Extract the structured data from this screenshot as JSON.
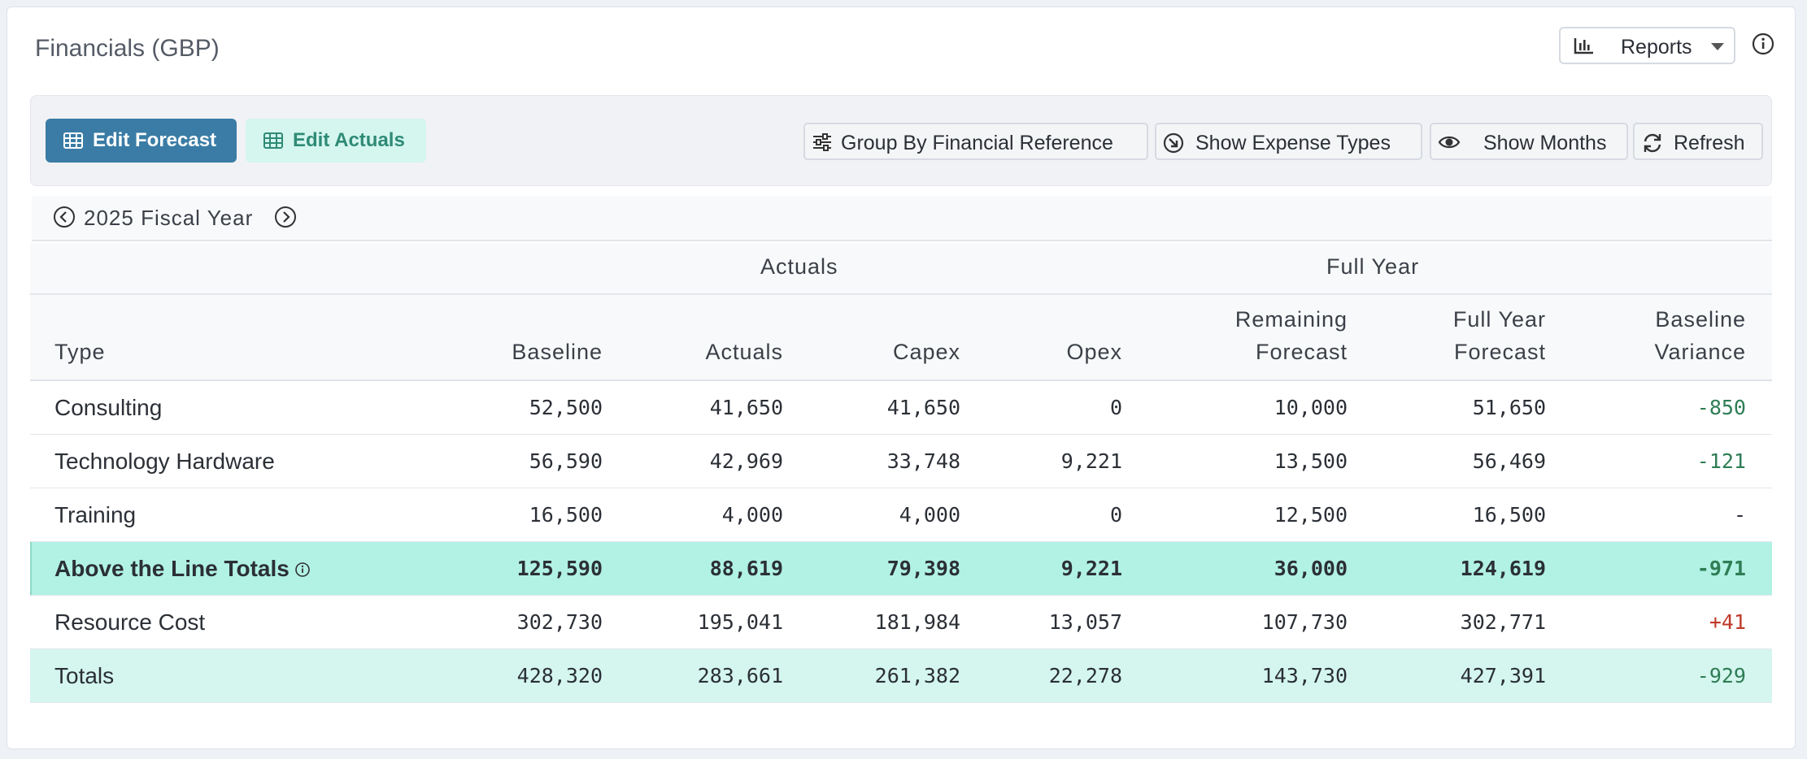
{
  "header": {
    "title": "Financials (GBP)",
    "reports_label": "Reports"
  },
  "toolbar": {
    "edit_forecast": "Edit Forecast",
    "edit_actuals": "Edit Actuals",
    "group_by": "Group By Financial Reference",
    "expense_types": "Show Expense Types",
    "show_months": "Show Months",
    "refresh": "Refresh"
  },
  "fiscal_year": {
    "label": "2025 Fiscal Year"
  },
  "table": {
    "groups": {
      "actuals": "Actuals",
      "full_year": "Full Year"
    },
    "columns": {
      "type": "Type",
      "baseline": "Baseline",
      "actuals": "Actuals",
      "capex": "Capex",
      "opex": "Opex",
      "remaining_1": "Remaining",
      "remaining_2": "Forecast",
      "fyf_1": "Full Year",
      "fyf_2": "Forecast",
      "bv_1": "Baseline",
      "bv_2": "Variance"
    },
    "rows": [
      {
        "type": "Consulting",
        "baseline": "52,500",
        "actuals": "41,650",
        "capex": "41,650",
        "opex": "0",
        "remaining": "10,000",
        "fyf": "51,650",
        "variance": "-850"
      },
      {
        "type": "Technology Hardware",
        "baseline": "56,590",
        "actuals": "42,969",
        "capex": "33,748",
        "opex": "9,221",
        "remaining": "13,500",
        "fyf": "56,469",
        "variance": "-121"
      },
      {
        "type": "Training",
        "baseline": "16,500",
        "actuals": "4,000",
        "capex": "4,000",
        "opex": "0",
        "remaining": "12,500",
        "fyf": "16,500",
        "variance": "-"
      },
      {
        "type": "Above the Line Totals",
        "baseline": "125,590",
        "actuals": "88,619",
        "capex": "79,398",
        "opex": "9,221",
        "remaining": "36,000",
        "fyf": "124,619",
        "variance": "-971"
      },
      {
        "type": "Resource Cost",
        "baseline": "302,730",
        "actuals": "195,041",
        "capex": "181,984",
        "opex": "13,057",
        "remaining": "107,730",
        "fyf": "302,771",
        "variance": "+41"
      },
      {
        "type": "Totals",
        "baseline": "428,320",
        "actuals": "283,661",
        "capex": "261,382",
        "opex": "22,278",
        "remaining": "143,730",
        "fyf": "427,391",
        "variance": "-929"
      }
    ]
  },
  "colors": {
    "primary": "#3a7ca5",
    "mint": "#d4f6ef",
    "highlight": "#b1f2e5",
    "negative": "#2f7d55",
    "positive": "#c0392b"
  }
}
